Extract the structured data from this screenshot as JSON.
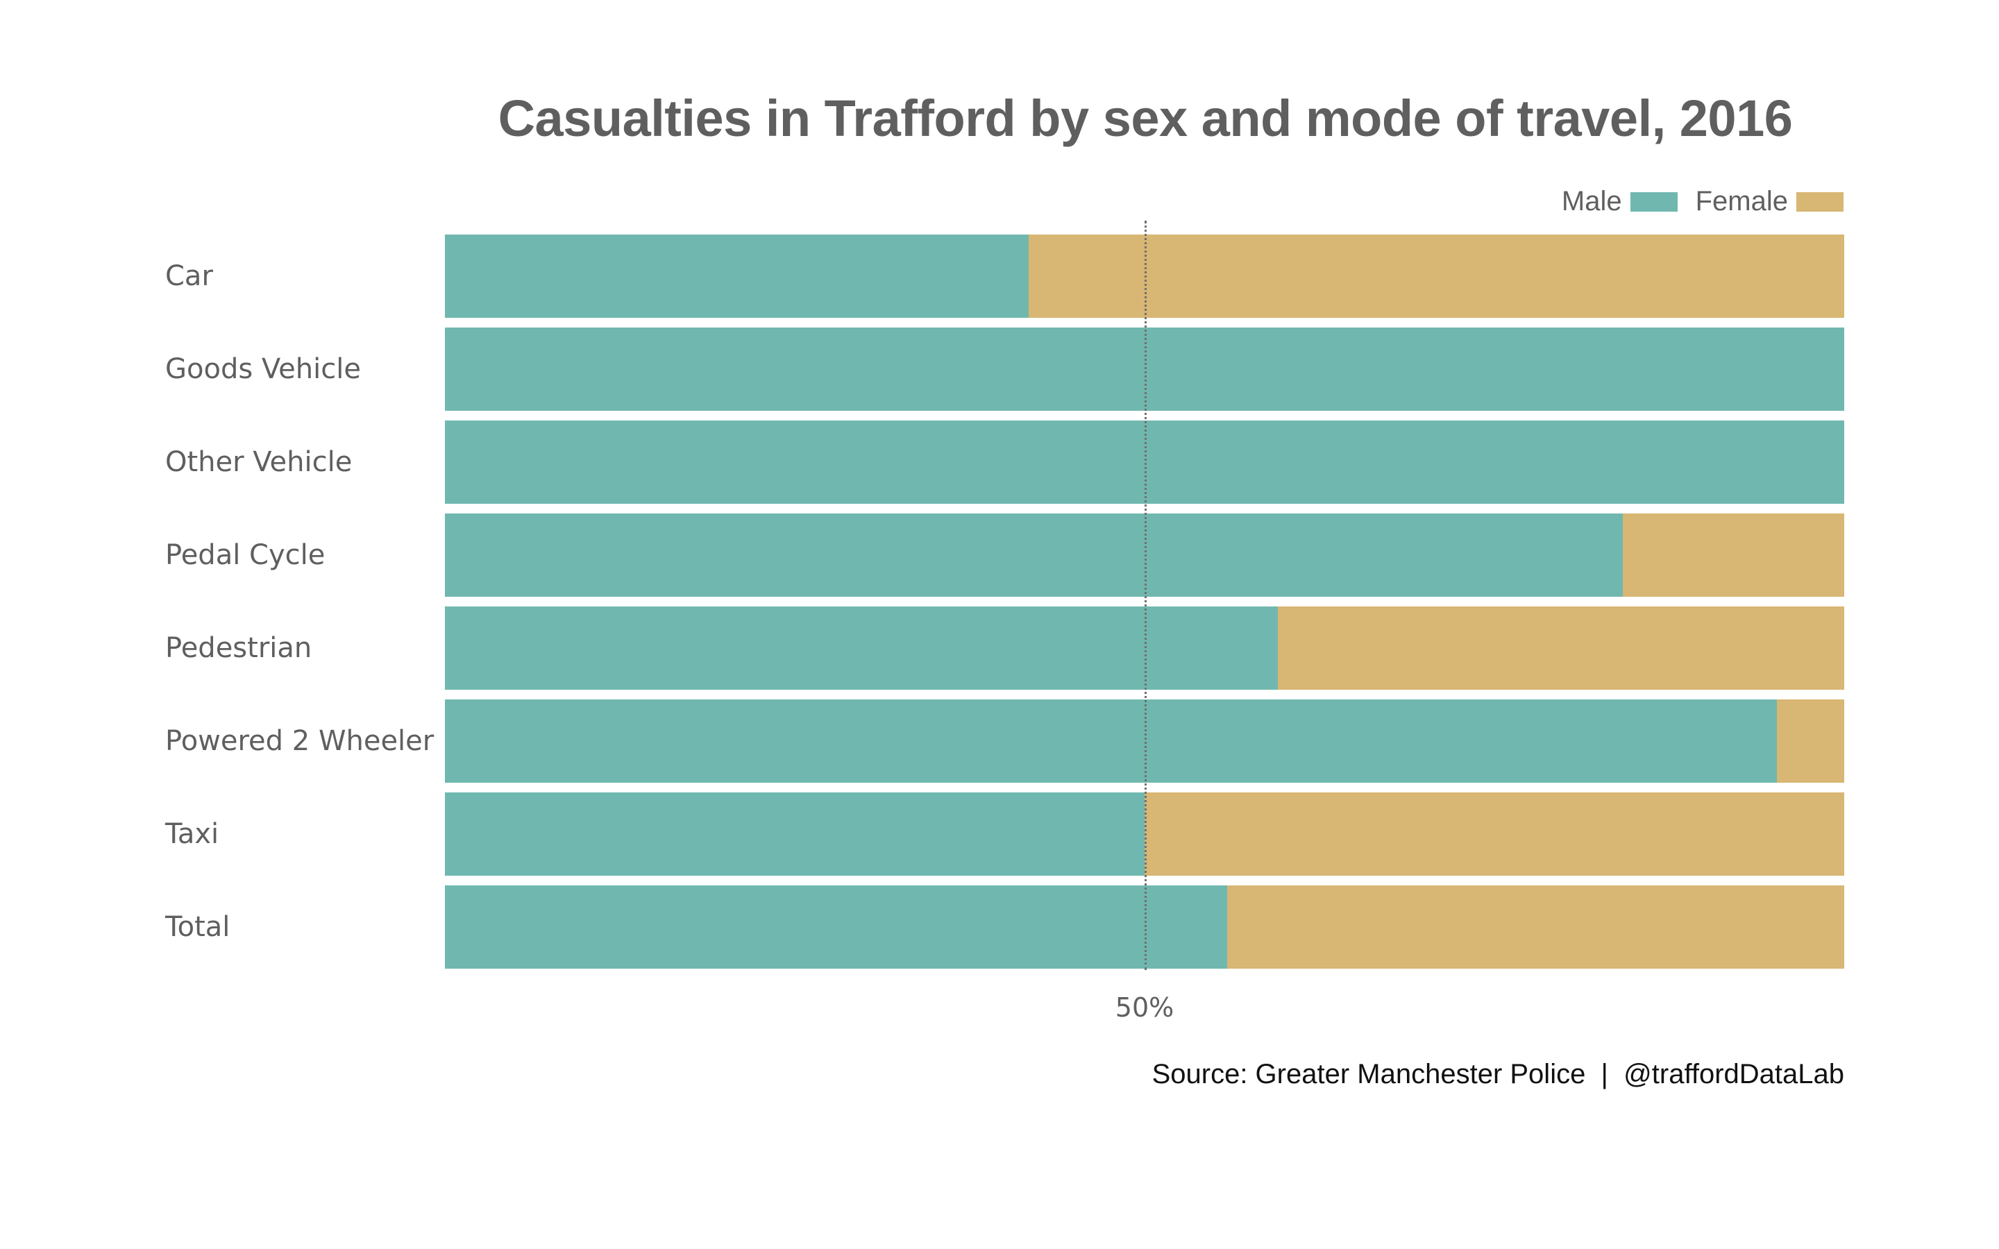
{
  "title": "Casualties in Trafford by sex and mode of travel, 2016",
  "caption": "Source: Greater Manchester Police  |  @traffordDataLab",
  "legend": [
    {
      "label": "Male",
      "color": "#70B8AF"
    },
    {
      "label": "Female",
      "color": "#D8B673"
    }
  ],
  "x_axis": {
    "ticks": [
      {
        "value": 50,
        "label": "50%"
      }
    ]
  },
  "chart_data": {
    "type": "bar",
    "orientation": "horizontal",
    "stacked": "percent",
    "title": "Casualties in Trafford by sex and mode of travel, 2016",
    "xlabel": "",
    "ylabel": "",
    "xlim": [
      0,
      100
    ],
    "x_ticks": [
      "50%"
    ],
    "reference_line": {
      "x": 50,
      "style": "dotted"
    },
    "grid": false,
    "legend_position": "top-right",
    "categories": [
      "Car",
      "Goods Vehicle",
      "Other Vehicle",
      "Pedal Cycle",
      "Pedestrian",
      "Powered 2 Wheeler",
      "Taxi",
      "Total"
    ],
    "series": [
      {
        "name": "Male",
        "color": "#70B8AF",
        "values": [
          41.7,
          100,
          100,
          84.2,
          59.5,
          95.2,
          50.0,
          55.9
        ]
      },
      {
        "name": "Female",
        "color": "#D8B673",
        "values": [
          58.3,
          0,
          0,
          15.8,
          40.5,
          4.8,
          50.0,
          44.1
        ]
      }
    ],
    "source": "Source: Greater Manchester Police  |  @traffordDataLab"
  }
}
